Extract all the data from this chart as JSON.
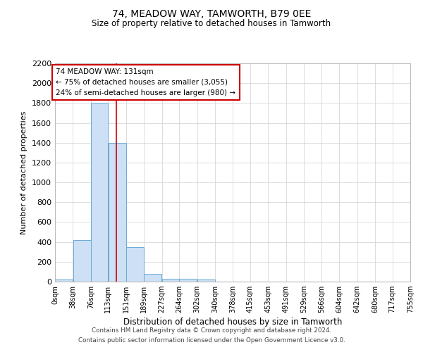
{
  "title1": "74, MEADOW WAY, TAMWORTH, B79 0EE",
  "title2": "Size of property relative to detached houses in Tamworth",
  "xlabel": "Distribution of detached houses by size in Tamworth",
  "ylabel": "Number of detached properties",
  "bar_color": "#cde0f5",
  "bar_edge_color": "#6aaad4",
  "bin_edges": [
    0,
    38,
    76,
    113,
    151,
    189,
    227,
    264,
    302,
    340,
    378,
    415,
    453,
    491,
    529,
    566,
    604,
    642,
    680,
    717,
    755
  ],
  "bar_heights": [
    20,
    420,
    1800,
    1400,
    350,
    80,
    30,
    30,
    20,
    0,
    0,
    0,
    0,
    0,
    0,
    0,
    0,
    0,
    0,
    0
  ],
  "tick_labels": [
    "0sqm",
    "38sqm",
    "76sqm",
    "113sqm",
    "151sqm",
    "189sqm",
    "227sqm",
    "264sqm",
    "302sqm",
    "340sqm",
    "378sqm",
    "415sqm",
    "453sqm",
    "491sqm",
    "529sqm",
    "566sqm",
    "604sqm",
    "642sqm",
    "680sqm",
    "717sqm",
    "755sqm"
  ],
  "red_line_x": 131,
  "ylim": [
    0,
    2200
  ],
  "yticks": [
    0,
    200,
    400,
    600,
    800,
    1000,
    1200,
    1400,
    1600,
    1800,
    2000,
    2200
  ],
  "annotation_title": "74 MEADOW WAY: 131sqm",
  "annotation_line1": "← 75% of detached houses are smaller (3,055)",
  "annotation_line2": "24% of semi-detached houses are larger (980) →",
  "annotation_box_color": "#ffffff",
  "annotation_box_edge": "#cc0000",
  "footer1": "Contains HM Land Registry data © Crown copyright and database right 2024.",
  "footer2": "Contains public sector information licensed under the Open Government Licence v3.0.",
  "background_color": "#ffffff",
  "grid_color": "#d0d0d0"
}
